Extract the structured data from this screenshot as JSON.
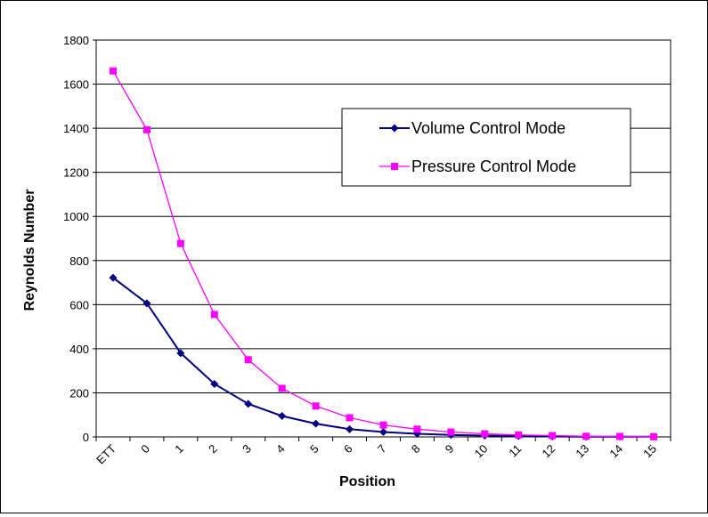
{
  "chart_data": {
    "type": "line",
    "title": "",
    "xlabel": "Position",
    "ylabel": "Reynolds Number",
    "categories": [
      "ETT",
      "0",
      "1",
      "2",
      "3",
      "4",
      "5",
      "6",
      "7",
      "8",
      "9",
      "10",
      "11",
      "12",
      "13",
      "14",
      "15"
    ],
    "ylim": [
      0,
      1800
    ],
    "yticks": [
      0,
      200,
      400,
      600,
      800,
      1000,
      1200,
      1400,
      1600,
      1800
    ],
    "grid": "horizontal",
    "legend_position": "top-right",
    "series": [
      {
        "name": "Volume Control Mode",
        "color": "#000080",
        "marker": "diamond",
        "values": [
          722,
          606,
          380,
          240,
          150,
          95,
          60,
          35,
          22,
          14,
          9,
          6,
          4,
          2,
          1,
          1,
          1
        ]
      },
      {
        "name": "Pressure Control Mode",
        "color": "#ff00ff",
        "marker": "square",
        "values": [
          1660,
          1393,
          877,
          555,
          350,
          220,
          140,
          87,
          54,
          35,
          22,
          14,
          9,
          6,
          3,
          2,
          1
        ]
      }
    ]
  }
}
